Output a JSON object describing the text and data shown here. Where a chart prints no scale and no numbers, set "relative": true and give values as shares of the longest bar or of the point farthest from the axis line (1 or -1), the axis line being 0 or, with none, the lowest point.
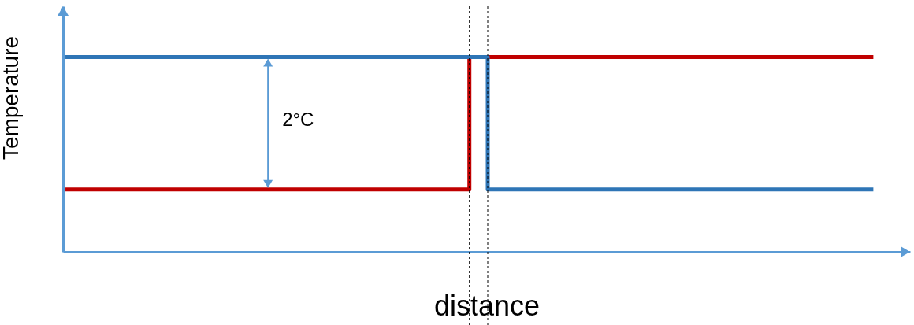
{
  "chart_data": {
    "type": "step",
    "xlabel": "distance",
    "ylabel": "Temperature",
    "relative": true,
    "categories": [
      null,
      null,
      null,
      null,
      null,
      null,
      null,
      null,
      null,
      null,
      null,
      null,
      null,
      null,
      null,
      null,
      null,
      null,
      null,
      null,
      null,
      null,
      null,
      null,
      null,
      null,
      null,
      null,
      null,
      null,
      null,
      null,
      null,
      null,
      null,
      null,
      null,
      null,
      null,
      null,
      null,
      null,
      null,
      null,
      null
    ],
    "series": [
      {
        "color": "#c00000",
        "values": [
          0.32,
          0.32,
          0.32,
          0.32,
          0.32,
          0.32,
          0.32,
          0.32,
          0.32,
          0.32,
          0.32,
          0.32,
          0.32,
          0.32,
          0.32,
          0.32,
          0.32,
          0.32,
          0.32,
          0.32,
          0.32,
          0.32,
          1,
          1,
          1,
          1,
          1,
          1,
          1,
          1,
          1,
          1,
          1,
          1,
          1,
          1,
          1,
          1,
          1,
          1,
          1,
          1,
          1,
          1,
          1
        ]
      },
      {
        "color": "#2e75b6",
        "values": [
          1,
          1,
          1,
          1,
          1,
          1,
          1,
          1,
          1,
          1,
          1,
          1,
          1,
          1,
          1,
          1,
          1,
          1,
          1,
          1,
          1,
          1,
          1,
          0.32,
          0.32,
          0.32,
          0.32,
          0.32,
          0.32,
          0.32,
          0.32,
          0.32,
          0.32,
          0.32,
          0.32,
          0.32,
          0.32,
          0.32,
          0.32,
          0.32,
          0.32,
          0.32,
          0.32,
          0.32,
          0.32
        ]
      }
    ],
    "annotations": [
      "2°C"
    ]
  }
}
